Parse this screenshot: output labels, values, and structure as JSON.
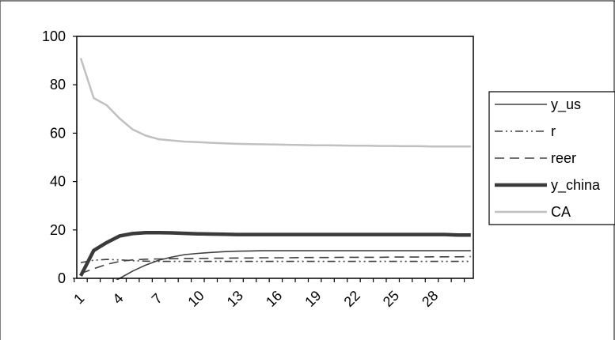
{
  "chart_data": {
    "type": "line",
    "title": "",
    "xlabel": "",
    "ylabel": "",
    "ylim": [
      0,
      100
    ],
    "yticks": [
      0,
      20,
      40,
      60,
      80,
      100
    ],
    "x": [
      1,
      2,
      3,
      4,
      5,
      6,
      7,
      8,
      9,
      10,
      11,
      12,
      13,
      14,
      15,
      16,
      17,
      18,
      19,
      20,
      21,
      22,
      23,
      24,
      25,
      26,
      27,
      28,
      29,
      30,
      31
    ],
    "xtick_labels": [
      "1",
      "4",
      "7",
      "10",
      "13",
      "16",
      "19",
      "22",
      "25",
      "28"
    ],
    "xtick_values": [
      1,
      4,
      7,
      10,
      13,
      16,
      19,
      22,
      25,
      28
    ],
    "grid": false,
    "legend_position": "right",
    "series": [
      {
        "name": "y_us",
        "color": "#404040",
        "dash": "solid",
        "width": "thin",
        "values": [
          -10,
          -8,
          -3,
          0,
          3,
          5.5,
          7.5,
          8.8,
          9.8,
          10.3,
          10.7,
          11,
          11.2,
          11.3,
          11.4,
          11.4,
          11.4,
          11.4,
          11.4,
          11.4,
          11.4,
          11.4,
          11.4,
          11.4,
          11.4,
          11.4,
          11.4,
          11.4,
          11.4,
          11.4,
          11.4
        ]
      },
      {
        "name": "r",
        "color": "#404040",
        "dash": "dash-dot-dot",
        "width": "thin",
        "values": [
          6.5,
          7.5,
          7.8,
          7.6,
          7.3,
          7.1,
          7,
          7,
          7,
          7,
          7,
          7,
          7,
          7,
          7,
          7,
          7,
          7,
          7,
          7,
          7,
          7,
          7,
          7,
          7,
          7,
          7,
          7,
          7,
          7,
          7
        ]
      },
      {
        "name": "reer",
        "color": "#404040",
        "dash": "dashed",
        "width": "thin",
        "values": [
          2,
          4,
          5.8,
          7,
          7.6,
          7.9,
          8,
          8.1,
          8.2,
          8.2,
          8.3,
          8.3,
          8.4,
          8.4,
          8.5,
          8.5,
          8.5,
          8.6,
          8.6,
          8.6,
          8.7,
          8.7,
          8.7,
          8.7,
          8.8,
          8.8,
          8.8,
          8.9,
          8.9,
          8.9,
          9
        ]
      },
      {
        "name": "y_china",
        "color": "#3a3a3a",
        "dash": "solid",
        "width": "thick",
        "values": [
          1,
          11.5,
          14.8,
          17.5,
          18.5,
          18.9,
          18.9,
          18.8,
          18.6,
          18.4,
          18.3,
          18.2,
          18.1,
          18.1,
          18.1,
          18.1,
          18.1,
          18.1,
          18.1,
          18.1,
          18.1,
          18.1,
          18.1,
          18.1,
          18.1,
          18.1,
          18.1,
          18.1,
          18.1,
          17.9,
          17.9
        ]
      },
      {
        "name": "CA",
        "color": "#c0c0c0",
        "dash": "solid",
        "width": "medium",
        "values": [
          91,
          74.5,
          71.5,
          66,
          61.5,
          59,
          57.5,
          57,
          56.5,
          56.3,
          56,
          55.8,
          55.6,
          55.5,
          55.4,
          55.3,
          55.2,
          55.1,
          55,
          55,
          54.9,
          54.8,
          54.8,
          54.7,
          54.7,
          54.6,
          54.6,
          54.5,
          54.5,
          54.5,
          54.5
        ]
      }
    ]
  }
}
